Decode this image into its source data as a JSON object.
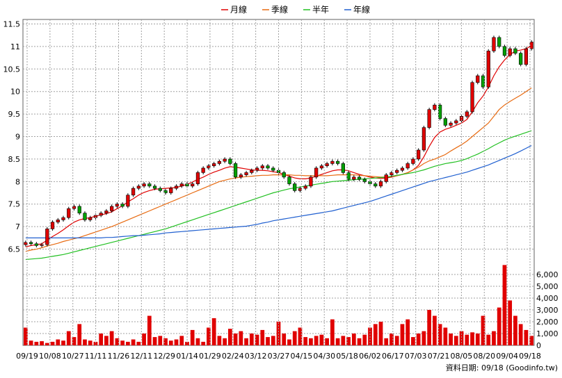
{
  "legend": [
    {
      "label": "月線",
      "color": "#e00000"
    },
    {
      "label": "季線",
      "color": "#e86a10"
    },
    {
      "label": "半年",
      "color": "#20c020"
    },
    {
      "label": "年線",
      "color": "#1f5fd0"
    }
  ],
  "footer": {
    "text": "資料日期: 09/18 (Goodinfo.tw)"
  },
  "colors": {
    "up": "#e00000",
    "down": "#00a000",
    "grid": "#a0a0a0",
    "volume": "#e00000"
  },
  "chart_data": [
    {
      "type": "candlestick",
      "title": "",
      "ylim": [
        6.2,
        11.6
      ],
      "yticks": [
        6.5,
        7,
        7.5,
        8,
        8.5,
        9,
        9.5,
        10,
        10.5,
        11,
        11.5
      ],
      "ytick_labels": [
        "6.5",
        "7",
        "7.5",
        "8",
        "8.5",
        "9",
        "9.5",
        "10",
        "10.5",
        "11",
        "11.5"
      ],
      "xtick_labels": [
        "09/19",
        "10/08",
        "10/27",
        "11/11",
        "11/26",
        "12/11",
        "12/29",
        "01/14",
        "01/29",
        "02/24",
        "03/12",
        "03/27",
        "04/15",
        "04/30",
        "05/18",
        "06/02",
        "06/17",
        "07/03",
        "07/21",
        "08/05",
        "08/20",
        "09/04",
        "09/18"
      ],
      "grid": true,
      "close": [
        6.65,
        6.62,
        6.58,
        6.6,
        6.95,
        7.1,
        7.15,
        7.2,
        7.4,
        7.45,
        7.3,
        7.15,
        7.2,
        7.25,
        7.3,
        7.35,
        7.45,
        7.5,
        7.45,
        7.7,
        7.85,
        7.9,
        7.95,
        7.9,
        7.85,
        7.8,
        7.75,
        7.85,
        7.9,
        7.95,
        7.9,
        7.95,
        8.2,
        8.3,
        8.35,
        8.4,
        8.45,
        8.5,
        8.4,
        8.1,
        8.15,
        8.2,
        8.25,
        8.3,
        8.35,
        8.3,
        8.25,
        8.2,
        8.1,
        7.95,
        7.8,
        7.85,
        7.9,
        8.1,
        8.3,
        8.35,
        8.4,
        8.45,
        8.4,
        8.2,
        8.05,
        8.1,
        8.05,
        8.0,
        7.95,
        7.9,
        8.0,
        8.15,
        8.2,
        8.25,
        8.3,
        8.4,
        8.5,
        8.7,
        9.2,
        9.6,
        9.7,
        9.4,
        9.25,
        9.3,
        9.35,
        9.45,
        9.55,
        10.2,
        10.35,
        10.1,
        10.9,
        11.2,
        11.0,
        10.8,
        10.95,
        10.85,
        10.6,
        10.95,
        11.1
      ],
      "series": [
        {
          "name": "月線",
          "values": [
            6.55,
            6.58,
            6.6,
            6.62,
            6.7,
            6.78,
            6.85,
            6.93,
            7.02,
            7.1,
            7.15,
            7.18,
            7.2,
            7.23,
            7.26,
            7.29,
            7.33,
            7.4,
            7.46,
            7.55,
            7.62,
            7.7,
            7.76,
            7.8,
            7.83,
            7.84,
            7.85,
            7.86,
            7.87,
            7.9,
            7.94,
            7.99,
            8.05,
            8.1,
            8.16,
            8.21,
            8.25,
            8.3,
            8.33,
            8.32,
            8.3,
            8.28,
            8.26,
            8.25,
            8.25,
            8.24,
            8.22,
            8.2,
            8.16,
            8.12,
            8.08,
            8.06,
            8.06,
            8.08,
            8.12,
            8.16,
            8.2,
            8.24,
            8.26,
            8.26,
            8.24,
            8.2,
            8.16,
            8.13,
            8.1,
            8.08,
            8.07,
            8.08,
            8.1,
            8.13,
            8.16,
            8.2,
            8.26,
            8.36,
            8.55,
            8.78,
            8.98,
            9.1,
            9.16,
            9.2,
            9.25,
            9.3,
            9.38,
            9.55,
            9.75,
            9.9,
            10.1,
            10.35,
            10.55,
            10.7,
            10.82,
            10.9,
            10.92,
            10.95,
            11.02
          ]
        },
        {
          "name": "季線",
          "values": [
            6.45,
            6.48,
            6.5,
            6.53,
            6.57,
            6.6,
            6.63,
            6.67,
            6.7,
            6.73,
            6.76,
            6.8,
            6.84,
            6.88,
            6.92,
            6.96,
            7.0,
            7.05,
            7.1,
            7.15,
            7.2,
            7.25,
            7.3,
            7.35,
            7.4,
            7.45,
            7.5,
            7.55,
            7.6,
            7.65,
            7.7,
            7.75,
            7.8,
            7.85,
            7.9,
            7.95,
            8.0,
            8.03,
            8.06,
            8.08,
            8.1,
            8.11,
            8.12,
            8.13,
            8.14,
            8.14,
            8.15,
            8.15,
            8.15,
            8.15,
            8.14,
            8.14,
            8.13,
            8.13,
            8.13,
            8.13,
            8.13,
            8.14,
            8.15,
            8.15,
            8.15,
            8.15,
            8.14,
            8.13,
            8.12,
            8.11,
            8.1,
            8.1,
            8.11,
            8.13,
            8.16,
            8.2,
            8.26,
            8.32,
            8.4,
            8.46,
            8.5,
            8.55,
            8.6,
            8.68,
            8.75,
            8.82,
            8.9,
            9.0,
            9.1,
            9.2,
            9.3,
            9.45,
            9.6,
            9.7,
            9.78,
            9.85,
            9.92,
            10.0,
            10.08
          ]
        },
        {
          "name": "半年",
          "values": [
            6.27,
            6.28,
            6.29,
            6.3,
            6.32,
            6.34,
            6.36,
            6.38,
            6.41,
            6.44,
            6.47,
            6.5,
            6.53,
            6.56,
            6.59,
            6.62,
            6.65,
            6.68,
            6.71,
            6.74,
            6.77,
            6.8,
            6.83,
            6.86,
            6.89,
            6.92,
            6.95,
            6.99,
            7.03,
            7.07,
            7.11,
            7.15,
            7.19,
            7.23,
            7.27,
            7.31,
            7.35,
            7.39,
            7.43,
            7.47,
            7.51,
            7.55,
            7.59,
            7.63,
            7.67,
            7.71,
            7.75,
            7.78,
            7.81,
            7.84,
            7.86,
            7.88,
            7.9,
            7.92,
            7.94,
            7.96,
            7.98,
            8.0,
            8.01,
            8.02,
            8.03,
            8.04,
            8.05,
            8.06,
            8.07,
            8.08,
            8.09,
            8.1,
            8.12,
            8.14,
            8.16,
            8.18,
            8.2,
            8.23,
            8.26,
            8.3,
            8.34,
            8.37,
            8.4,
            8.42,
            8.44,
            8.47,
            8.51,
            8.56,
            8.61,
            8.67,
            8.73,
            8.8,
            8.86,
            8.92,
            8.97,
            9.01,
            9.05,
            9.09,
            9.13
          ]
        },
        {
          "name": "年線",
          "values": [
            6.75,
            6.75,
            6.75,
            6.75,
            6.75,
            6.75,
            6.75,
            6.75,
            6.75,
            6.75,
            6.75,
            6.75,
            6.75,
            6.75,
            6.75,
            6.76,
            6.76,
            6.77,
            6.78,
            6.79,
            6.8,
            6.8,
            6.81,
            6.82,
            6.83,
            6.84,
            6.86,
            6.87,
            6.88,
            6.89,
            6.9,
            6.91,
            6.92,
            6.93,
            6.94,
            6.95,
            6.96,
            6.97,
            6.98,
            6.99,
            7.0,
            7.01,
            7.03,
            7.05,
            7.08,
            7.1,
            7.13,
            7.15,
            7.17,
            7.19,
            7.21,
            7.23,
            7.25,
            7.27,
            7.29,
            7.31,
            7.33,
            7.35,
            7.38,
            7.41,
            7.44,
            7.47,
            7.5,
            7.53,
            7.56,
            7.6,
            7.64,
            7.68,
            7.72,
            7.76,
            7.8,
            7.84,
            7.88,
            7.92,
            7.96,
            8.0,
            8.03,
            8.06,
            8.09,
            8.12,
            8.15,
            8.18,
            8.21,
            8.25,
            8.29,
            8.33,
            8.37,
            8.42,
            8.47,
            8.52,
            8.57,
            8.62,
            8.68,
            8.74,
            8.8
          ]
        }
      ]
    },
    {
      "type": "bar",
      "title": "",
      "ylim": [
        0,
        7000
      ],
      "yticks": [
        0,
        1000,
        2000,
        3000,
        4000,
        5000,
        6000
      ],
      "ytick_labels": [
        "0",
        "1,000",
        "2,000",
        "3,000",
        "4,000",
        "5,000",
        "6,000"
      ],
      "grid": true,
      "values": [
        1500,
        400,
        300,
        350,
        200,
        300,
        500,
        400,
        1200,
        700,
        1800,
        500,
        400,
        300,
        1000,
        800,
        1200,
        600,
        400,
        300,
        500,
        300,
        1000,
        2500,
        700,
        800,
        600,
        400,
        500,
        800,
        300,
        1300,
        600,
        300,
        1500,
        2300,
        800,
        600,
        1400,
        1000,
        1200,
        600,
        1000,
        900,
        1300,
        700,
        800,
        2000,
        1000,
        500,
        1200,
        1500,
        700,
        600,
        800,
        900,
        600,
        2200,
        600,
        800,
        700,
        1000,
        600,
        900,
        1500,
        1800,
        2000,
        600,
        1000,
        800,
        1800,
        2200,
        700,
        1000,
        1200,
        3000,
        2500,
        1800,
        1500,
        1000,
        800,
        1200,
        900,
        1100,
        1000,
        2500,
        900,
        1200,
        3200,
        6800,
        3800,
        2500,
        1800,
        1300,
        800
      ]
    }
  ]
}
